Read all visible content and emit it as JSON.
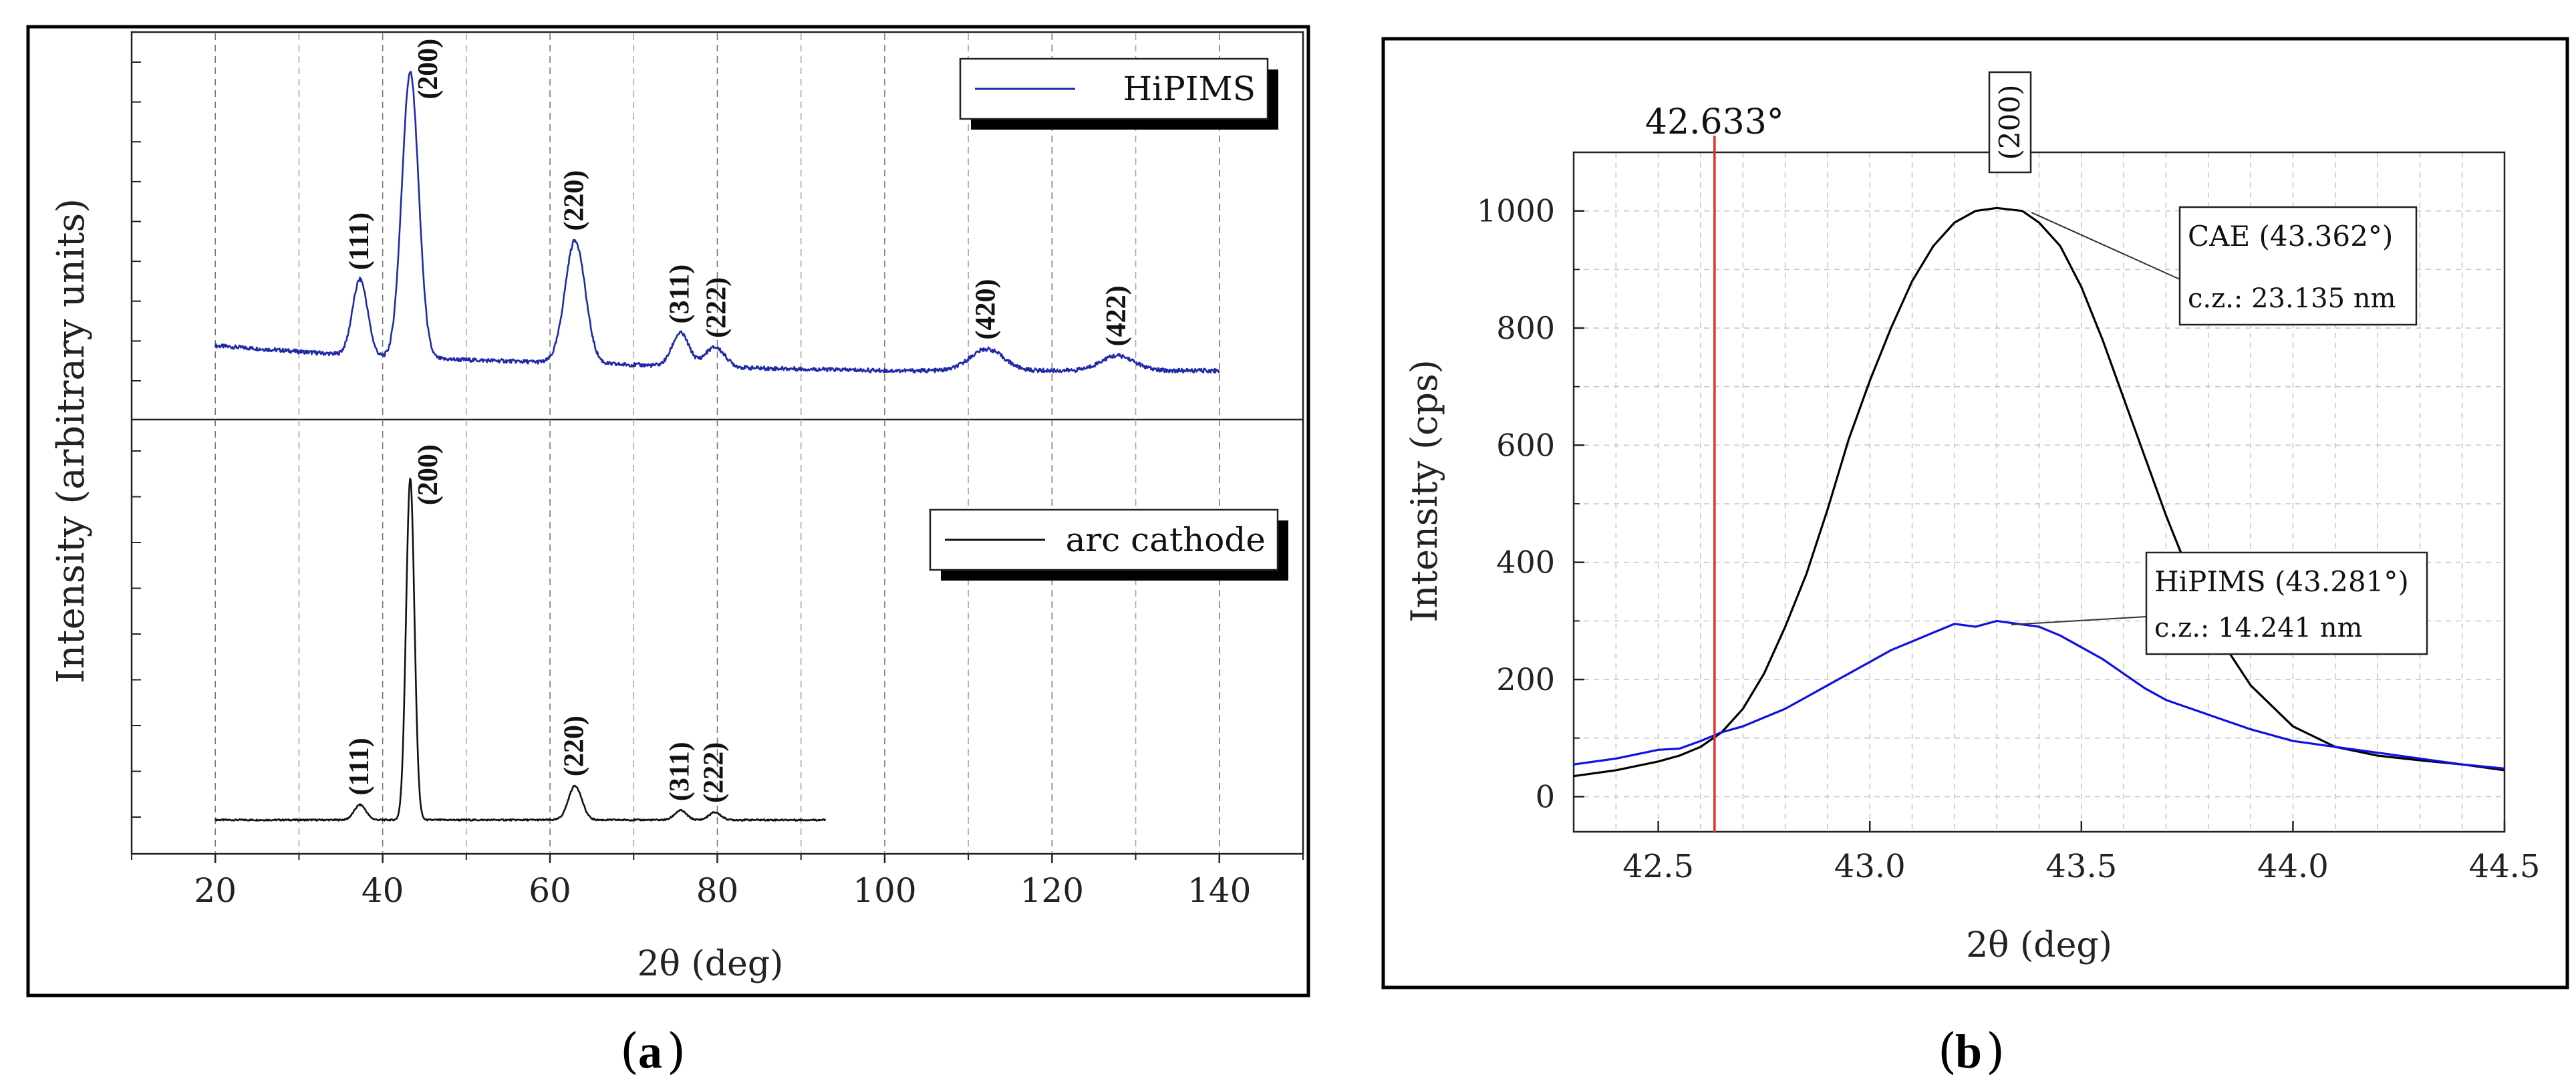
{
  "chart_data": [
    {
      "id": "a",
      "type": "line",
      "panel_label": "(a)",
      "letter": "a",
      "xlabel": "2θ (deg)",
      "ylabel": "Intensity (arbitrary units)",
      "xlim": [
        10,
        150
      ],
      "x_ticks": [
        20,
        40,
        60,
        80,
        100,
        120,
        140
      ],
      "x_tick_labels": [
        "20",
        "40",
        "60",
        "80",
        "100",
        "120",
        "140"
      ],
      "grid": "vertical dashed",
      "subplots": [
        {
          "name": "HiPIMS",
          "legend": "HiPIMS",
          "color": "#1f2aa8",
          "ylim": [
            0,
            1
          ],
          "x_range": [
            20,
            140
          ],
          "baseline": [
            [
              20,
              0.16
            ],
            [
              40,
              0.125
            ],
            [
              60,
              0.11
            ],
            [
              80,
              0.095
            ],
            [
              100,
              0.085
            ],
            [
              120,
              0.085
            ],
            [
              140,
              0.085
            ]
          ],
          "peaks": [
            {
              "label": "(111)",
              "x": 37.3,
              "height": 0.23,
              "width": 0.9
            },
            {
              "label": "(200)",
              "x": 43.3,
              "height": 0.86,
              "width": 1.0
            },
            {
              "label": "(220)",
              "x": 63.0,
              "height": 0.37,
              "width": 1.2
            },
            {
              "label": "(311)",
              "x": 75.6,
              "height": 0.1,
              "width": 1.0
            },
            {
              "label": "(222)",
              "x": 79.7,
              "height": 0.06,
              "width": 1.2
            },
            {
              "label": "(420)",
              "x": 112.2,
              "height": 0.065,
              "width": 2.0
            },
            {
              "label": "(422)",
              "x": 127.8,
              "height": 0.045,
              "width": 2.0
            }
          ]
        },
        {
          "name": "arc cathode",
          "legend": "arc cathode",
          "color": "#111111",
          "ylim": [
            0,
            1
          ],
          "x_range": [
            20,
            93
          ],
          "baseline": [
            [
              20,
              0.04
            ],
            [
              93,
              0.04
            ]
          ],
          "peaks": [
            {
              "label": "(111)",
              "x": 37.3,
              "height": 0.04,
              "width": 0.7
            },
            {
              "label": "(200)",
              "x": 43.3,
              "height": 0.9,
              "width": 0.5
            },
            {
              "label": "(220)",
              "x": 63.0,
              "height": 0.09,
              "width": 0.8
            },
            {
              "label": "(311)",
              "x": 75.6,
              "height": 0.025,
              "width": 0.7
            },
            {
              "label": "(222)",
              "x": 79.7,
              "height": 0.02,
              "width": 0.7
            }
          ]
        }
      ]
    },
    {
      "id": "b",
      "type": "line",
      "panel_label": "(b)",
      "letter": "b",
      "xlabel": "2θ (deg)",
      "ylabel": "Intensity (cps)",
      "xlim": [
        42.3,
        44.5
      ],
      "ylim": [
        -60,
        1100
      ],
      "x_ticks": [
        42.5,
        43.0,
        43.5,
        44.0,
        44.5
      ],
      "x_tick_labels": [
        "42.5",
        "43.0",
        "43.5",
        "44.0",
        "44.5"
      ],
      "y_ticks": [
        0,
        200,
        400,
        600,
        800,
        1000
      ],
      "y_tick_labels": [
        "0",
        "200",
        "400",
        "600",
        "800",
        "1000"
      ],
      "grid": "dashed",
      "reference_line": {
        "x": 42.633,
        "label": "42.633°",
        "color": "#e03030"
      },
      "peak_box_label": "(200)",
      "series": [
        {
          "name": "CAE",
          "color": "#000000",
          "x": [
            42.3,
            42.4,
            42.5,
            42.55,
            42.6,
            42.65,
            42.7,
            42.75,
            42.8,
            42.85,
            42.9,
            42.95,
            43.0,
            43.05,
            43.1,
            43.15,
            43.2,
            43.25,
            43.3,
            43.36,
            43.4,
            43.45,
            43.5,
            43.55,
            43.6,
            43.65,
            43.7,
            43.75,
            43.8,
            43.9,
            44.0,
            44.1,
            44.2,
            44.3,
            44.4,
            44.5
          ],
          "y": [
            35,
            45,
            60,
            70,
            85,
            110,
            150,
            210,
            290,
            380,
            490,
            610,
            710,
            800,
            880,
            940,
            980,
            1000,
            1005,
            1000,
            980,
            940,
            870,
            780,
            680,
            580,
            480,
            390,
            300,
            190,
            120,
            85,
            70,
            62,
            55,
            45
          ],
          "annotation": {
            "line1": "CAE (43.362°)",
            "line2": "c.z.: 23.135 nm",
            "peak_x": 43.362
          }
        },
        {
          "name": "HiPIMS",
          "color": "#1010e0",
          "x": [
            42.3,
            42.4,
            42.5,
            42.55,
            42.6,
            42.65,
            42.7,
            42.75,
            42.8,
            42.85,
            42.9,
            42.95,
            43.0,
            43.05,
            43.1,
            43.15,
            43.2,
            43.25,
            43.3,
            43.35,
            43.4,
            43.45,
            43.5,
            43.55,
            43.6,
            43.65,
            43.7,
            43.8,
            43.9,
            44.0,
            44.1,
            44.2,
            44.3,
            44.4,
            44.5
          ],
          "y": [
            55,
            65,
            80,
            82,
            95,
            110,
            120,
            135,
            150,
            170,
            190,
            210,
            230,
            250,
            265,
            280,
            295,
            290,
            300,
            295,
            290,
            275,
            255,
            235,
            210,
            185,
            165,
            140,
            115,
            95,
            85,
            75,
            65,
            55,
            48
          ],
          "annotation": {
            "line1": "HiPIMS (43.281°)",
            "line2": "c.z.: 14.241 nm",
            "peak_x": 43.281
          }
        }
      ]
    }
  ]
}
